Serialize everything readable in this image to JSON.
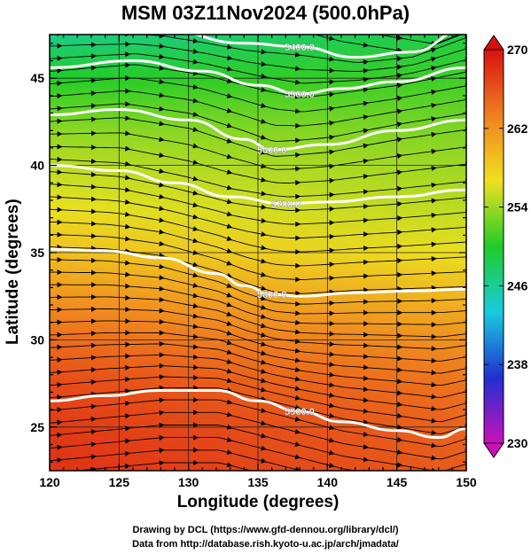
{
  "title": "MSM 03Z11Nov2024 (500.0hPa)",
  "xlabel": "Longitude (degrees)",
  "ylabel": "Latitude  (degrees)",
  "credits": [
    "Drawing by DCL (https://www.gfd-dennou.org/library/dcl/)",
    "Data from http://database.rish.kyoto-u.ac.jp/arch/jmadata/"
  ],
  "chart_data": {
    "type": "heatmap",
    "title": "MSM 03Z11Nov2024 (500.0hPa)",
    "xlabel": "Longitude (degrees)",
    "ylabel": "Latitude  (degrees)",
    "xlim": [
      120,
      150
    ],
    "ylim": [
      22.5,
      47.5
    ],
    "xticks": [
      120,
      125,
      130,
      135,
      140,
      145,
      150
    ],
    "yticks": [
      25,
      30,
      35,
      40,
      45
    ],
    "grid": true,
    "colorbar": {
      "min": 230,
      "max": 270,
      "ticks": [
        230,
        238,
        246,
        254,
        262,
        270
      ],
      "colors": [
        "#cc10bb",
        "#2030d0",
        "#18cce0",
        "#20cc28",
        "#f0e020",
        "#f08020",
        "#d81010"
      ]
    },
    "temperature_field": {
      "latitudes": [
        47.5,
        45,
        42,
        40,
        37.5,
        35,
        32,
        30,
        27.5,
        25,
        22.5
      ],
      "values_west": [
        246.5,
        250,
        253.5,
        255,
        256.5,
        259,
        262.5,
        264.5,
        266.5,
        267.5,
        268
      ],
      "values_east": [
        249,
        251,
        253,
        254,
        255,
        256.5,
        260,
        262,
        264,
        265,
        265.5
      ]
    },
    "height_contours": [
      {
        "label": "5400.0",
        "points": [
          [
            122,
            48
          ],
          [
            128,
            47.8
          ],
          [
            134,
            47
          ],
          [
            138,
            46.8
          ],
          [
            142,
            46.2
          ],
          [
            146,
            46.5
          ],
          [
            150,
            47.8
          ]
        ]
      },
      {
        "label": "5500.0",
        "points": [
          [
            120,
            45.6
          ],
          [
            126,
            46
          ],
          [
            131,
            45.4
          ],
          [
            135,
            44.6
          ],
          [
            138,
            44.1
          ],
          [
            141,
            44.4
          ],
          [
            145,
            44.8
          ],
          [
            150,
            45.6
          ]
        ]
      },
      {
        "label": "5600.0",
        "points": [
          [
            120,
            42.9
          ],
          [
            125,
            43.2
          ],
          [
            130,
            42.6
          ],
          [
            134,
            41.5
          ],
          [
            136,
            40.9
          ],
          [
            140,
            41.2
          ],
          [
            145,
            42
          ],
          [
            150,
            42.6
          ]
        ]
      },
      {
        "label": "5700.0",
        "points": [
          [
            120,
            40
          ],
          [
            125,
            39.7
          ],
          [
            129,
            39
          ],
          [
            133,
            38.2
          ],
          [
            137,
            37.8
          ],
          [
            140,
            37.9
          ],
          [
            145,
            38.2
          ],
          [
            150,
            38.6
          ]
        ]
      },
      {
        "label": "5800.0",
        "points": [
          [
            120,
            35.2
          ],
          [
            124,
            35.1
          ],
          [
            128,
            34.7
          ],
          [
            132,
            33.8
          ],
          [
            134,
            33.1
          ],
          [
            136,
            32.6
          ],
          [
            138,
            32.5
          ],
          [
            142,
            32.7
          ],
          [
            146,
            32.8
          ],
          [
            150,
            32.9
          ]
        ]
      },
      {
        "label": "5900.0",
        "points": [
          [
            120,
            26.5
          ],
          [
            124,
            26.8
          ],
          [
            128,
            27.1
          ],
          [
            132,
            27.1
          ],
          [
            135,
            26.5
          ],
          [
            138,
            25.9
          ],
          [
            141,
            25.3
          ],
          [
            145,
            24.8
          ],
          [
            148,
            24.4
          ],
          [
            150,
            24.9
          ]
        ]
      }
    ]
  }
}
